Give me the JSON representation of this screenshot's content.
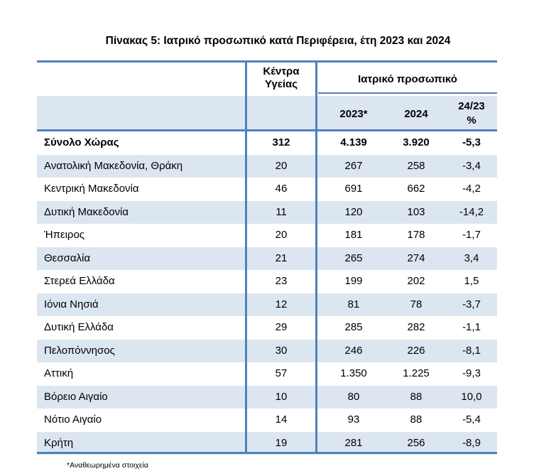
{
  "title": "Πίνακας 5: Ιατρικό προσωπικό κατά Περιφέρεια, έτη 2023 και 2024",
  "headers": {
    "health_centers": "Κέντρα Υγείας",
    "medical_staff": "Ιατρικό προσωπικό",
    "col_2023": "2023*",
    "col_2024": "2024",
    "col_change_line1": "24/23",
    "col_change_line2": "%"
  },
  "rows": [
    {
      "region": "Σύνολο Χώρας",
      "centers": "312",
      "y2023": "4.139",
      "y2024": "3.920",
      "change": "-5,3"
    },
    {
      "region": "Ανατολική Μακεδονία, Θράκη",
      "centers": "20",
      "y2023": "267",
      "y2024": "258",
      "change": "-3,4"
    },
    {
      "region": "Κεντρική Μακεδονία",
      "centers": "46",
      "y2023": "691",
      "y2024": "662",
      "change": "-4,2"
    },
    {
      "region": "Δυτική Μακεδονία",
      "centers": "11",
      "y2023": "120",
      "y2024": "103",
      "change": "-14,2"
    },
    {
      "region": "Ήπειρος",
      "centers": "20",
      "y2023": "181",
      "y2024": "178",
      "change": "-1,7"
    },
    {
      "region": "Θεσσαλία",
      "centers": "21",
      "y2023": "265",
      "y2024": "274",
      "change": "3,4"
    },
    {
      "region": "Στερεά Ελλάδα",
      "centers": "23",
      "y2023": "199",
      "y2024": "202",
      "change": "1,5"
    },
    {
      "region": "Ιόνια Νησιά",
      "centers": "12",
      "y2023": "81",
      "y2024": "78",
      "change": "-3,7"
    },
    {
      "region": "Δυτική Ελλάδα",
      "centers": "29",
      "y2023": "285",
      "y2024": "282",
      "change": "-1,1"
    },
    {
      "region": "Πελοπόννησος",
      "centers": "30",
      "y2023": "246",
      "y2024": "226",
      "change": "-8,1"
    },
    {
      "region": "Αττική",
      "centers": "57",
      "y2023": "1.350",
      "y2024": "1.225",
      "change": "-9,3"
    },
    {
      "region": "Βόρειο Αιγαίο",
      "centers": "10",
      "y2023": "80",
      "y2024": "88",
      "change": "10,0"
    },
    {
      "region": "Νότιο Αιγαίο",
      "centers": "14",
      "y2023": "93",
      "y2024": "88",
      "change": "-5,4"
    },
    {
      "region": "Κρήτη",
      "centers": "19",
      "y2023": "281",
      "y2024": "256",
      "change": "-8,9"
    }
  ],
  "footnote": "*Αναθεωρημένα στοιχεία",
  "colors": {
    "border": "#4f81bd",
    "shade": "#dce6f1"
  }
}
